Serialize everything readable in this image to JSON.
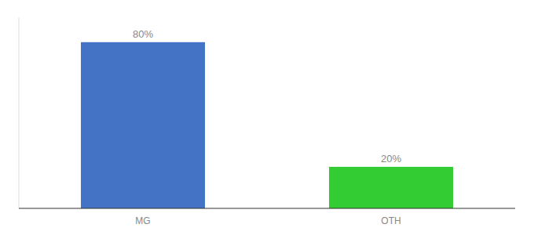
{
  "chart_data": {
    "type": "bar",
    "categories": [
      "MG",
      "OTH"
    ],
    "values": [
      80,
      20
    ],
    "value_labels": [
      "80%",
      "20%"
    ],
    "colors": [
      "#4472c4",
      "#33cc33"
    ],
    "ylim": [
      0,
      92
    ],
    "data_labels": true,
    "tick_labels": "x"
  }
}
